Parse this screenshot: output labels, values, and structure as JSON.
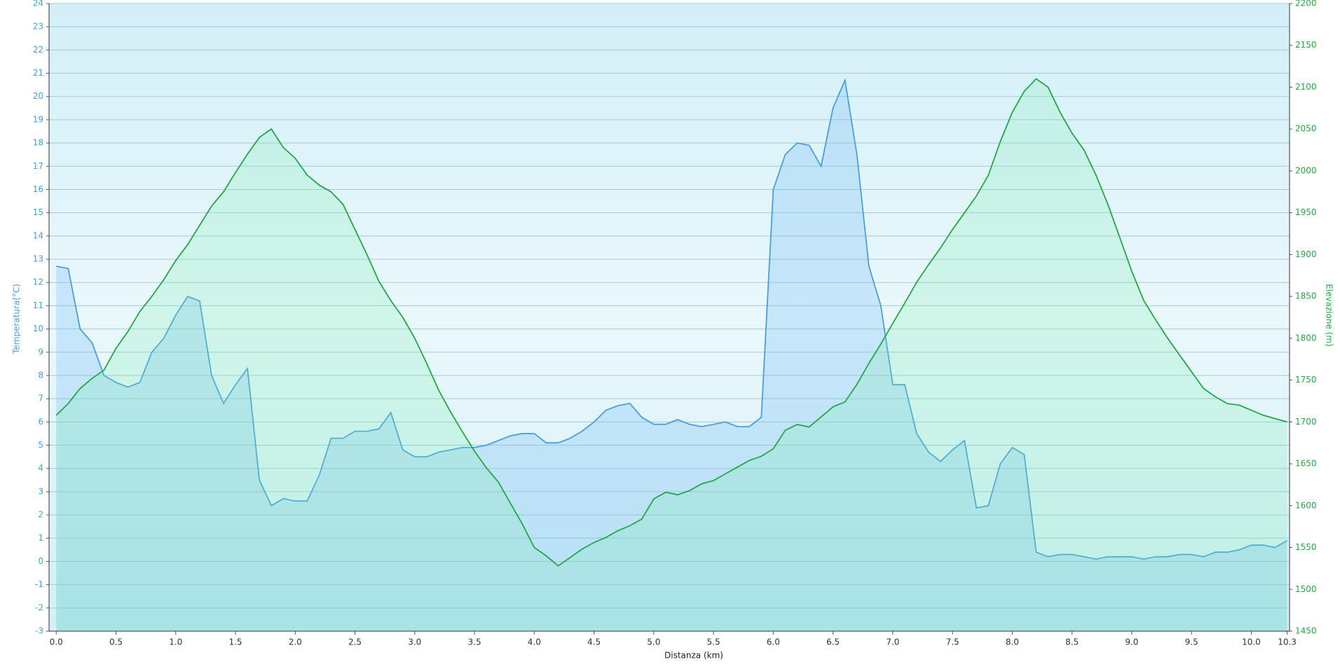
{
  "chart_data": {
    "type": "line",
    "xlabel": "Distanza  (km)",
    "ylabel": "Temperatura(°C)",
    "y2label": "Elevazione (m)",
    "x": [
      0.0,
      0.1,
      0.2,
      0.3,
      0.4,
      0.5,
      0.6,
      0.7,
      0.8,
      0.9,
      1.0,
      1.1,
      1.2,
      1.3,
      1.4,
      1.5,
      1.6,
      1.7,
      1.8,
      1.9,
      2.0,
      2.1,
      2.2,
      2.3,
      2.4,
      2.5,
      2.6,
      2.7,
      2.8,
      2.9,
      3.0,
      3.1,
      3.2,
      3.3,
      3.4,
      3.5,
      3.6,
      3.7,
      3.8,
      3.9,
      4.0,
      4.1,
      4.2,
      4.3,
      4.4,
      4.5,
      4.6,
      4.7,
      4.8,
      4.9,
      5.0,
      5.1,
      5.2,
      5.3,
      5.4,
      5.5,
      5.6,
      5.7,
      5.8,
      5.9,
      6.0,
      6.1,
      6.2,
      6.3,
      6.4,
      6.5,
      6.6,
      6.7,
      6.8,
      6.9,
      7.0,
      7.1,
      7.2,
      7.3,
      7.4,
      7.5,
      7.6,
      7.7,
      7.8,
      7.9,
      8.0,
      8.1,
      8.2,
      8.3,
      8.4,
      8.5,
      8.6,
      8.7,
      8.8,
      8.9,
      9.0,
      9.1,
      9.2,
      9.3,
      9.4,
      9.5,
      9.6,
      9.7,
      9.8,
      9.9,
      10.0,
      10.1,
      10.2,
      10.3
    ],
    "series": [
      {
        "name": "Temperatura",
        "color": "#4a9ede",
        "fill": "rgba(120,190,245,0.30)",
        "values": [
          12.7,
          12.6,
          10.0,
          9.4,
          8.0,
          7.7,
          7.5,
          7.7,
          9.0,
          9.6,
          10.6,
          11.4,
          11.2,
          8.0,
          6.8,
          7.6,
          8.3,
          3.5,
          2.4,
          2.7,
          2.6,
          2.6,
          3.7,
          5.3,
          5.3,
          5.6,
          5.6,
          5.7,
          6.4,
          4.8,
          4.5,
          4.5,
          4.7,
          4.8,
          4.9,
          4.9,
          5.0,
          5.2,
          5.4,
          5.5,
          5.5,
          5.1,
          5.1,
          5.3,
          5.6,
          6.0,
          6.5,
          6.7,
          6.8,
          6.2,
          5.9,
          5.9,
          6.1,
          5.9,
          5.8,
          5.9,
          6.0,
          5.8,
          5.8,
          6.2,
          16.0,
          17.5,
          18.0,
          17.9,
          17.0,
          19.5,
          20.7,
          17.5,
          12.7,
          11.0,
          7.6,
          7.6,
          5.5,
          4.7,
          4.3,
          4.8,
          5.2,
          2.3,
          2.4,
          4.2,
          4.9,
          4.6,
          0.4,
          0.2,
          0.3,
          0.3,
          0.2,
          0.1,
          0.2,
          0.2,
          0.2,
          0.1,
          0.2,
          0.2,
          0.3,
          0.3,
          0.2,
          0.4,
          0.4,
          0.5,
          0.7,
          0.7,
          0.6,
          0.9
        ]
      },
      {
        "name": "Elevazione",
        "color": "#22a845",
        "fill": "rgba(120,235,170,0.22)",
        "axis": "y2",
        "values": [
          1708,
          1722,
          1740,
          1752,
          1762,
          1788,
          1808,
          1832,
          1850,
          1870,
          1893,
          1912,
          1935,
          1958,
          1975,
          1998,
          2020,
          2040,
          2050,
          2028,
          2015,
          1995,
          1983,
          1975,
          1960,
          1930,
          1900,
          1868,
          1845,
          1825,
          1800,
          1770,
          1738,
          1712,
          1688,
          1665,
          1645,
          1628,
          1603,
          1578,
          1550,
          1540,
          1528,
          1538,
          1548,
          1556,
          1562,
          1570,
          1576,
          1584,
          1608,
          1616,
          1613,
          1618,
          1626,
          1630,
          1638,
          1646,
          1654,
          1659,
          1668,
          1690,
          1697,
          1694,
          1706,
          1718,
          1724,
          1745,
          1770,
          1793,
          1818,
          1842,
          1867,
          1888,
          1908,
          1930,
          1950,
          1970,
          1995,
          2035,
          2070,
          2095,
          2110,
          2100,
          2070,
          2045,
          2025,
          1995,
          1960,
          1920,
          1880,
          1845,
          1822,
          1800,
          1780,
          1760,
          1740,
          1730,
          1722,
          1720,
          1714,
          1708,
          1704,
          1700
        ]
      }
    ],
    "xlim": [
      -0.06,
      10.32
    ],
    "xticks": [
      {
        "value": 0,
        "label": "0.0"
      },
      0.5,
      {
        "value": 1,
        "label": "1.0"
      },
      1.5,
      {
        "value": 2,
        "label": "2.0"
      },
      2.5,
      {
        "value": 3,
        "label": "3.0"
      },
      3.5,
      {
        "value": 4,
        "label": "4.0"
      },
      4.5,
      {
        "value": 5,
        "label": "5.0"
      },
      5.5,
      {
        "value": 6,
        "label": "6.0"
      },
      6.5,
      {
        "value": 7,
        "label": "7.0"
      },
      7.5,
      {
        "value": 8,
        "label": "8.0"
      },
      8.5,
      {
        "value": 9,
        "label": "9.0"
      },
      9.5,
      {
        "value": 10,
        "label": "10.0"
      },
      10.3
    ],
    "ylim": [
      -3,
      24
    ],
    "yticks": [
      -3,
      -2,
      -1,
      0,
      1,
      2,
      3,
      4,
      5,
      6,
      7,
      8,
      9,
      10,
      11,
      12,
      13,
      14,
      15,
      16,
      17,
      18,
      19,
      20,
      21,
      22,
      23,
      24
    ],
    "y2lim": [
      1450,
      2200
    ],
    "y2ticks": [
      1450,
      1500,
      1550,
      1600,
      1650,
      1700,
      1750,
      1800,
      1850,
      1900,
      1950,
      2000,
      2050,
      2100,
      2150,
      2200
    ],
    "grid": true
  }
}
